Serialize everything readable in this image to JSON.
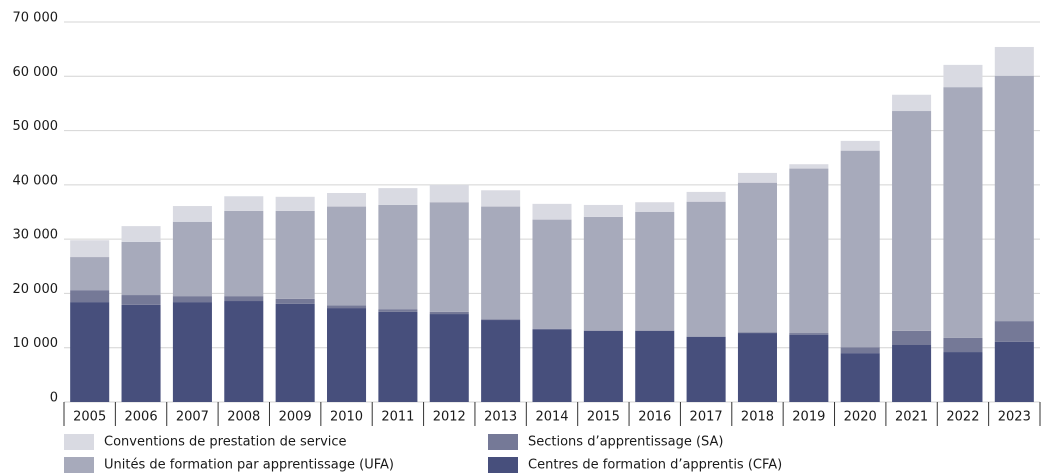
{
  "chart_data": {
    "type": "stacked_bar",
    "categories": [
      "2005",
      "2006",
      "2007",
      "2008",
      "2009",
      "2010",
      "2011",
      "2012",
      "2013",
      "2014",
      "2015",
      "2016",
      "2017",
      "2018",
      "2019",
      "2020",
      "2021",
      "2022",
      "2023"
    ],
    "series": [
      {
        "name": "Centres de formation d’apprentis (CFA)",
        "color": "#474f7c",
        "values": [
          18400,
          17900,
          18400,
          18600,
          18100,
          17300,
          16600,
          16200,
          15100,
          13400,
          13100,
          13100,
          12000,
          12700,
          12400,
          9000,
          10500,
          9200,
          11100
        ]
      },
      {
        "name": "Sections d’apprentissage (SA)",
        "color": "#757997",
        "values": [
          2200,
          1800,
          1100,
          900,
          900,
          500,
          500,
          400,
          100,
          100,
          100,
          100,
          100,
          100,
          300,
          1100,
          2600,
          2600,
          3800
        ]
      },
      {
        "name": "Unités de formation par apprentissage (UFA)",
        "color": "#a7aabb",
        "values": [
          6100,
          9800,
          13700,
          15700,
          16200,
          18200,
          19200,
          20200,
          20800,
          20100,
          20900,
          21800,
          24800,
          27600,
          30300,
          36200,
          40500,
          46200,
          45200
        ]
      },
      {
        "name": "Conventions de prestation de service",
        "color": "#d9dae2",
        "values": [
          3100,
          2900,
          2900,
          2700,
          2600,
          2500,
          3100,
          3200,
          3000,
          2900,
          2200,
          1800,
          1800,
          1800,
          800,
          1800,
          3000,
          4100,
          5300
        ]
      }
    ],
    "ylim": [
      0,
      70000
    ],
    "yticks": [
      0,
      {
        "value": 10000,
        "label": "10 000"
      },
      {
        "value": 20000,
        "label": "20 000"
      },
      {
        "value": 30000,
        "label": "30 000"
      },
      {
        "value": 40000,
        "label": "40 000"
      },
      {
        "value": 50000,
        "label": "50 000"
      },
      {
        "value": 60000,
        "label": "60 000"
      },
      {
        "value": 70000,
        "label": "70 000"
      }
    ],
    "grid": true
  }
}
